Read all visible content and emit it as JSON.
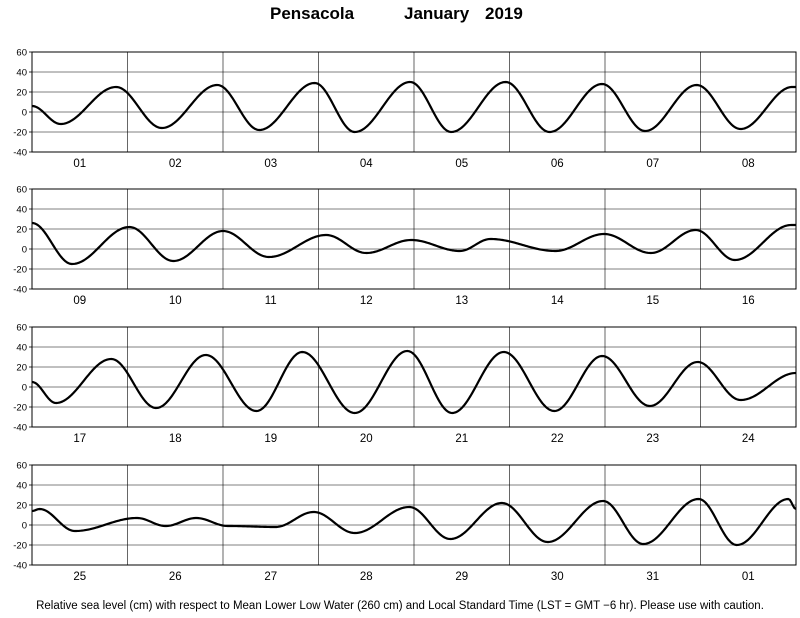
{
  "title": {
    "station": "Pensacola",
    "month": "January",
    "year": "2019"
  },
  "footer": "Relative sea level (cm) with respect to Mean Lower Low Water (260 cm) and Local Standard Time (LST = GMT −6 hr). Please use with caution.",
  "chart_data": [
    {
      "type": "line",
      "ylim": [
        -40,
        60
      ],
      "yticks": [
        -40,
        -20,
        0,
        20,
        40,
        60
      ],
      "grid": true,
      "x_unit": "day",
      "day_labels": [
        "01",
        "02",
        "03",
        "04",
        "05",
        "06",
        "07",
        "08"
      ],
      "x": [
        0,
        0.3,
        0.88,
        1.36,
        1.94,
        2.38,
        2.96,
        3.38,
        3.96,
        4.39,
        4.96,
        5.42,
        5.97,
        6.42,
        6.96,
        7.42,
        7.96
      ],
      "y": [
        6,
        -12,
        25,
        -16,
        27,
        -18,
        29,
        -20,
        30,
        -20,
        30,
        -20,
        28,
        -19,
        27,
        -17,
        25
      ],
      "series": [
        {
          "name": "",
          "color": "#000000"
        }
      ]
    },
    {
      "type": "line",
      "ylim": [
        -40,
        60
      ],
      "yticks": [
        -40,
        -20,
        0,
        20,
        40,
        60
      ],
      "grid": true,
      "x_unit": "day",
      "day_labels": [
        "09",
        "10",
        "11",
        "12",
        "13",
        "14",
        "15",
        "16"
      ],
      "x": [
        0,
        0.42,
        1.02,
        1.48,
        2.0,
        2.48,
        3.08,
        3.5,
        3.97,
        4.48,
        4.8,
        5.48,
        5.99,
        6.48,
        6.95,
        7.36,
        7.95
      ],
      "y": [
        26,
        -15,
        22,
        -12,
        18,
        -8,
        14,
        -4,
        9,
        -2,
        10,
        -2,
        15,
        -4,
        19,
        -11,
        24
      ],
      "series": [
        {
          "name": "",
          "color": "#000000"
        }
      ]
    },
    {
      "type": "line",
      "ylim": [
        -40,
        60
      ],
      "yticks": [
        -40,
        -20,
        0,
        20,
        40,
        60
      ],
      "grid": true,
      "x_unit": "day",
      "day_labels": [
        "17",
        "18",
        "19",
        "20",
        "21",
        "22",
        "23",
        "24"
      ],
      "x": [
        0,
        0.25,
        0.83,
        1.3,
        1.82,
        2.35,
        2.83,
        3.38,
        3.93,
        4.4,
        4.94,
        5.47,
        5.97,
        6.47,
        6.97,
        7.42,
        8
      ],
      "y": [
        5,
        -16,
        28,
        -21,
        32,
        -24,
        35,
        -26,
        36,
        -26,
        35,
        -24,
        31,
        -19,
        25,
        -13,
        14
      ],
      "series": [
        {
          "name": "",
          "color": "#000000"
        }
      ]
    },
    {
      "type": "line",
      "ylim": [
        -40,
        60
      ],
      "yticks": [
        -40,
        -20,
        0,
        20,
        40,
        60
      ],
      "grid": true,
      "x_unit": "day",
      "day_labels": [
        "25",
        "26",
        "27",
        "28",
        "29",
        "30",
        "31",
        "01"
      ],
      "x": [
        0,
        0.08,
        0.45,
        1.1,
        1.4,
        1.72,
        2.05,
        2.55,
        2.95,
        3.38,
        3.95,
        4.38,
        4.92,
        5.4,
        5.98,
        6.4,
        6.98,
        7.38,
        7.92,
        8
      ],
      "y": [
        14,
        16,
        -6,
        7,
        -1,
        7,
        -1,
        -2,
        13,
        -8,
        18,
        -14,
        22,
        -17,
        24,
        -19,
        26,
        -20,
        26,
        16
      ],
      "series": [
        {
          "name": "",
          "color": "#000000"
        }
      ]
    }
  ]
}
